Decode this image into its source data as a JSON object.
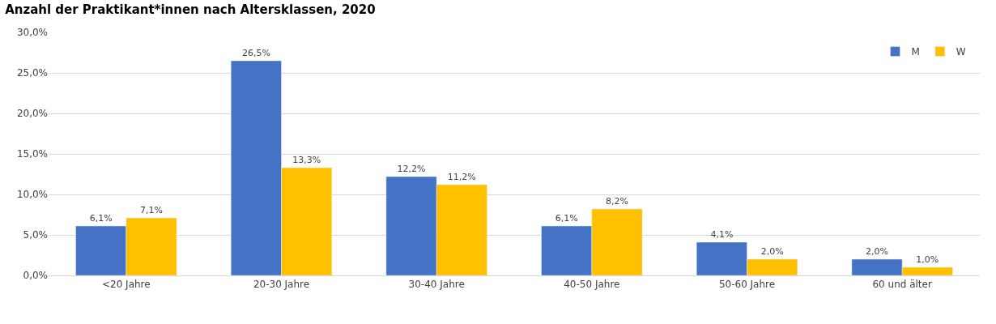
{
  "chart_data": {
    "type": "bar",
    "title": "Anzahl der Praktikant*innen nach Altersklassen, 2020",
    "categories": [
      "<20 Jahre",
      "20-30 Jahre",
      "30-40 Jahre",
      "40-50 Jahre",
      "50-60 Jahre",
      "60 und älter"
    ],
    "series": [
      {
        "name": "M",
        "color": "#4472c4",
        "values": [
          6.1,
          26.5,
          12.2,
          6.1,
          4.1,
          2.0
        ],
        "value_labels": [
          "6,1%",
          "26,5%",
          "12,2%",
          "6,1%",
          "4,1%",
          "2,0%"
        ]
      },
      {
        "name": "W",
        "color": "#ffc000",
        "values": [
          7.1,
          13.3,
          11.2,
          8.2,
          2.0,
          1.0
        ],
        "value_labels": [
          "7,1%",
          "13,3%",
          "11,2%",
          "8,2%",
          "2,0%",
          "1,0%"
        ]
      }
    ],
    "ylim": [
      0,
      30
    ],
    "yticks": [
      {
        "value": 0,
        "label": "0,0%"
      },
      {
        "value": 5,
        "label": "5,0%"
      },
      {
        "value": 10,
        "label": "10,0%"
      },
      {
        "value": 15,
        "label": "15,0%"
      },
      {
        "value": 20,
        "label": "20,0%"
      },
      {
        "value": 25,
        "label": "25,0%"
      },
      {
        "value": 30,
        "label": "30,0%"
      }
    ],
    "grid": "y",
    "legend": "top right"
  }
}
